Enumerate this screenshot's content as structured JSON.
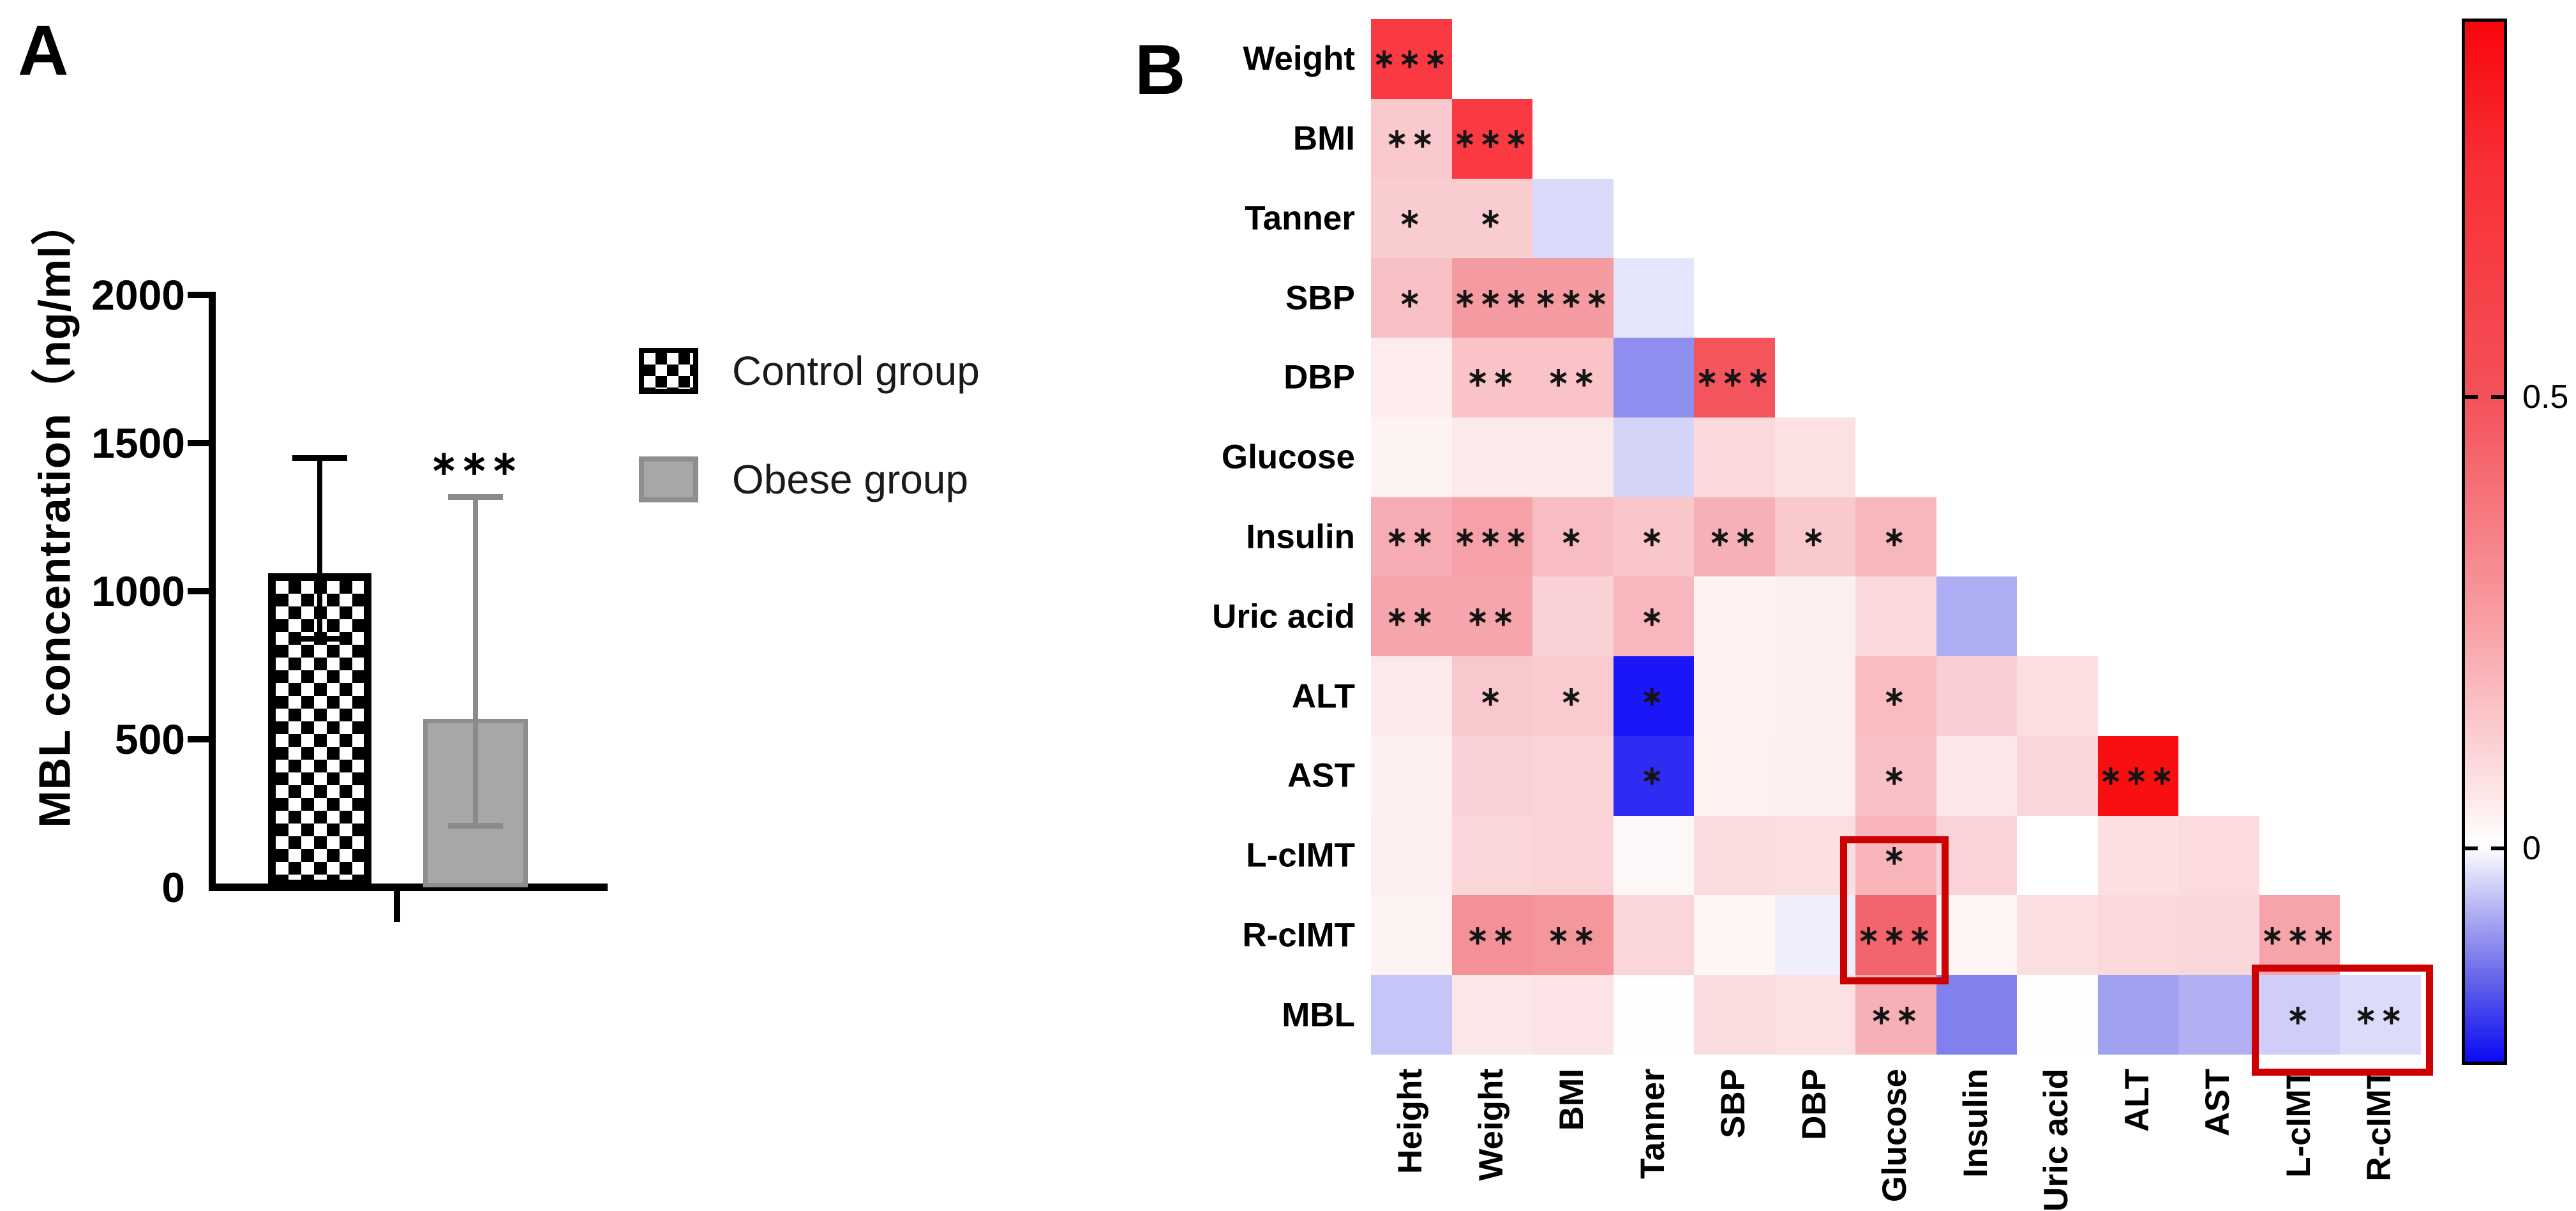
{
  "panel_a": {
    "label": "A",
    "y_axis": {
      "title": "MBL concentration（ng/ml）",
      "ticks": [
        {
          "label": "2000",
          "value": 2000
        },
        {
          "label": "1500",
          "value": 1500
        },
        {
          "label": "1000",
          "value": 1000
        },
        {
          "label": "500",
          "value": 500
        },
        {
          "label": "0",
          "value": 0
        }
      ]
    },
    "bars": [
      {
        "name": "Control group",
        "value": 1060,
        "err_low": 840,
        "err_high": 1450,
        "sig": "",
        "style": "checker"
      },
      {
        "name": "Obese group",
        "value": 570,
        "err_low": 210,
        "err_high": 1320,
        "sig": "***",
        "style": "gray"
      }
    ],
    "legend": [
      {
        "label": "Control group",
        "swatch": "checker-swatch"
      },
      {
        "label": "Obese group",
        "swatch": "gray-swatch"
      }
    ]
  },
  "panel_b": {
    "label": "B",
    "heatmap": {
      "col_labels": [
        "Height",
        "Weight",
        "BMI",
        "Tanner",
        "SBP",
        "DBP",
        "Glucose",
        "Insulin",
        "Uric acid",
        "ALT",
        "AST",
        "L-cIMT",
        "R-cIMT"
      ],
      "row_labels": [
        "Weight",
        "BMI",
        "Tanner",
        "SBP",
        "DBP",
        "Glucose",
        "Insulin",
        "Uric acid",
        "ALT",
        "AST",
        "L-cIMT",
        "R-cIMT",
        "MBL"
      ],
      "rows": [
        {
          "label": "Weight",
          "cells": [
            {
              "col": "Height",
              "r": 0.8,
              "sig": "***",
              "color": "#fa3a42"
            }
          ]
        },
        {
          "label": "BMI",
          "cells": [
            {
              "col": "Height",
              "r": 0.24,
              "sig": "**",
              "color": "#f9c9cd"
            },
            {
              "col": "Weight",
              "r": 0.8,
              "sig": "***",
              "color": "#fa3a42"
            }
          ]
        },
        {
          "label": "Tanner",
          "cells": [
            {
              "col": "Height",
              "r": 0.22,
              "sig": "*",
              "color": "#f9cdd0"
            },
            {
              "col": "Weight",
              "r": 0.22,
              "sig": "*",
              "color": "#f9cdd0"
            },
            {
              "col": "BMI",
              "r": -0.05,
              "sig": "",
              "color": "#d9d9f9"
            }
          ]
        },
        {
          "label": "SBP",
          "cells": [
            {
              "col": "Height",
              "r": 0.28,
              "sig": "*",
              "color": "#f7c0c5"
            },
            {
              "col": "Weight",
              "r": 0.45,
              "sig": "***",
              "color": "#f49aa1"
            },
            {
              "col": "BMI",
              "r": 0.45,
              "sig": "***",
              "color": "#f49aa1"
            },
            {
              "col": "Tanner",
              "r": -0.03,
              "sig": "",
              "color": "#e5e5fb"
            }
          ]
        },
        {
          "label": "DBP",
          "cells": [
            {
              "col": "Height",
              "r": 0.08,
              "sig": "",
              "color": "#fdedee"
            },
            {
              "col": "Weight",
              "r": 0.26,
              "sig": "**",
              "color": "#f9c3c7"
            },
            {
              "col": "BMI",
              "r": 0.26,
              "sig": "**",
              "color": "#f9c3c7"
            },
            {
              "col": "Tanner",
              "r": -0.16,
              "sig": "",
              "color": "#8e8eef"
            },
            {
              "col": "SBP",
              "r": 0.66,
              "sig": "***",
              "color": "#f4545c"
            }
          ]
        },
        {
          "label": "Glucose",
          "cells": [
            {
              "col": "Height",
              "r": 0.05,
              "sig": "",
              "color": "#fef3f3"
            },
            {
              "col": "Weight",
              "r": 0.1,
              "sig": "",
              "color": "#fce9ea"
            },
            {
              "col": "BMI",
              "r": 0.1,
              "sig": "",
              "color": "#fce9ea"
            },
            {
              "col": "Tanner",
              "r": -0.06,
              "sig": "",
              "color": "#d4d4f8"
            },
            {
              "col": "SBP",
              "r": 0.17,
              "sig": "",
              "color": "#fbd9dc"
            },
            {
              "col": "DBP",
              "r": 0.14,
              "sig": "",
              "color": "#fce1e3"
            }
          ]
        },
        {
          "label": "Insulin",
          "cells": [
            {
              "col": "Height",
              "r": 0.38,
              "sig": "**",
              "color": "#f6acb2"
            },
            {
              "col": "Weight",
              "r": 0.42,
              "sig": "***",
              "color": "#f5a1a7"
            },
            {
              "col": "BMI",
              "r": 0.3,
              "sig": "*",
              "color": "#f8bdc2"
            },
            {
              "col": "Tanner",
              "r": 0.25,
              "sig": "*",
              "color": "#f9c6ca"
            },
            {
              "col": "SBP",
              "r": 0.36,
              "sig": "**",
              "color": "#f5b1b7"
            },
            {
              "col": "DBP",
              "r": 0.24,
              "sig": "*",
              "color": "#f9c9cd"
            },
            {
              "col": "Glucose",
              "r": 0.32,
              "sig": "*",
              "color": "#f7b8bd"
            }
          ]
        },
        {
          "label": "Uric acid",
          "cells": [
            {
              "col": "Height",
              "r": 0.4,
              "sig": "**",
              "color": "#f5a5ab"
            },
            {
              "col": "Weight",
              "r": 0.4,
              "sig": "**",
              "color": "#f5a5ab"
            },
            {
              "col": "BMI",
              "r": 0.2,
              "sig": "",
              "color": "#fad2d6"
            },
            {
              "col": "Tanner",
              "r": 0.33,
              "sig": "*",
              "color": "#f7b7bc"
            },
            {
              "col": "SBP",
              "r": 0.05,
              "sig": "",
              "color": "#fef2f2"
            },
            {
              "col": "DBP",
              "r": 0.07,
              "sig": "",
              "color": "#fdf0f0"
            },
            {
              "col": "Glucose",
              "r": 0.17,
              "sig": "",
              "color": "#fadadd"
            },
            {
              "col": "Insulin",
              "r": -0.11,
              "sig": "",
              "color": "#aeaef4"
            }
          ]
        },
        {
          "label": "ALT",
          "cells": [
            {
              "col": "Height",
              "r": 0.1,
              "sig": "",
              "color": "#fceaeb"
            },
            {
              "col": "Weight",
              "r": 0.25,
              "sig": "*",
              "color": "#f9c8cc"
            },
            {
              "col": "BMI",
              "r": 0.23,
              "sig": "*",
              "color": "#f9cbcf"
            },
            {
              "col": "Tanner",
              "r": -0.24,
              "sig": "*",
              "color": "#1a16f8"
            },
            {
              "col": "SBP",
              "r": 0.05,
              "sig": "",
              "color": "#fef2f2"
            },
            {
              "col": "DBP",
              "r": 0.07,
              "sig": "",
              "color": "#fdeff0"
            },
            {
              "col": "Glucose",
              "r": 0.3,
              "sig": "*",
              "color": "#f8bcc1"
            },
            {
              "col": "Insulin",
              "r": 0.21,
              "sig": "",
              "color": "#facfd3"
            },
            {
              "col": "Uric acid",
              "r": 0.15,
              "sig": "",
              "color": "#fbdee0"
            }
          ]
        },
        {
          "label": "AST",
          "cells": [
            {
              "col": "Height",
              "r": 0.06,
              "sig": "",
              "color": "#fef0f0"
            },
            {
              "col": "Weight",
              "r": 0.2,
              "sig": "",
              "color": "#fad2d5"
            },
            {
              "col": "BMI",
              "r": 0.19,
              "sig": "",
              "color": "#fad4d7"
            },
            {
              "col": "Tanner",
              "r": -0.22,
              "sig": "*",
              "color": "#2f2bf3"
            },
            {
              "col": "SBP",
              "r": 0.06,
              "sig": "",
              "color": "#fef1f1"
            },
            {
              "col": "DBP",
              "r": 0.07,
              "sig": "",
              "color": "#fdeff0"
            },
            {
              "col": "Glucose",
              "r": 0.28,
              "sig": "*",
              "color": "#f8c1c6"
            },
            {
              "col": "Insulin",
              "r": 0.1,
              "sig": "",
              "color": "#fce8e9"
            },
            {
              "col": "Uric acid",
              "r": 0.18,
              "sig": "",
              "color": "#fad6d9"
            },
            {
              "col": "ALT",
              "r": 0.9,
              "sig": "***",
              "color": "#f7100f"
            }
          ]
        },
        {
          "label": "L-cIMT",
          "cells": [
            {
              "col": "Height",
              "r": 0.07,
              "sig": "",
              "color": "#fdeff0"
            },
            {
              "col": "Weight",
              "r": 0.18,
              "sig": "",
              "color": "#fad6d9"
            },
            {
              "col": "BMI",
              "r": 0.19,
              "sig": "",
              "color": "#fad3d6"
            },
            {
              "col": "Tanner",
              "r": 0.03,
              "sig": "",
              "color": "#fef7f7"
            },
            {
              "col": "SBP",
              "r": 0.16,
              "sig": "",
              "color": "#fbdcdf"
            },
            {
              "col": "DBP",
              "r": 0.15,
              "sig": "",
              "color": "#fbdee0"
            },
            {
              "col": "Glucose",
              "r": 0.34,
              "sig": "*",
              "color": "#f7b5ba"
            },
            {
              "col": "Insulin",
              "r": 0.19,
              "sig": "",
              "color": "#fad3d6"
            },
            {
              "col": "Uric acid",
              "r": 0.0,
              "sig": "",
              "color": "#ffffff"
            },
            {
              "col": "ALT",
              "r": 0.15,
              "sig": "",
              "color": "#fbdfe1"
            },
            {
              "col": "AST",
              "r": 0.16,
              "sig": "",
              "color": "#fbdbde"
            }
          ]
        },
        {
          "label": "R-cIMT",
          "cells": [
            {
              "col": "Height",
              "r": 0.05,
              "sig": "",
              "color": "#fef3f3"
            },
            {
              "col": "Weight",
              "r": 0.48,
              "sig": "**",
              "color": "#f49198"
            },
            {
              "col": "BMI",
              "r": 0.46,
              "sig": "**",
              "color": "#f4979d"
            },
            {
              "col": "Tanner",
              "r": 0.18,
              "sig": "",
              "color": "#fad6d9"
            },
            {
              "col": "SBP",
              "r": 0.04,
              "sig": "",
              "color": "#fef5f5"
            },
            {
              "col": "DBP",
              "r": -0.02,
              "sig": "",
              "color": "#efeffc"
            },
            {
              "col": "Glucose",
              "r": 0.6,
              "sig": "***",
              "color": "#f3646c"
            },
            {
              "col": "Insulin",
              "r": 0.04,
              "sig": "",
              "color": "#fef5f5"
            },
            {
              "col": "Uric acid",
              "r": 0.15,
              "sig": "",
              "color": "#fbdee0"
            },
            {
              "col": "ALT",
              "r": 0.17,
              "sig": "",
              "color": "#fad8db"
            },
            {
              "col": "AST",
              "r": 0.18,
              "sig": "",
              "color": "#fad7da"
            },
            {
              "col": "L-cIMT",
              "r": 0.4,
              "sig": "***",
              "color": "#f6a4aa"
            }
          ]
        },
        {
          "label": "MBL",
          "cells": [
            {
              "col": "Height",
              "r": -0.08,
              "sig": "",
              "color": "#c5c5f7"
            },
            {
              "col": "Weight",
              "r": 0.11,
              "sig": "",
              "color": "#fce7e8"
            },
            {
              "col": "BMI",
              "r": 0.12,
              "sig": "",
              "color": "#fce4e6"
            },
            {
              "col": "Tanner",
              "r": 0.01,
              "sig": "",
              "color": "#fffdfd"
            },
            {
              "col": "SBP",
              "r": 0.16,
              "sig": "",
              "color": "#fbdcdf"
            },
            {
              "col": "DBP",
              "r": 0.14,
              "sig": "",
              "color": "#fce1e3"
            },
            {
              "col": "Glucose",
              "r": 0.36,
              "sig": "**",
              "color": "#f7b1b6"
            },
            {
              "col": "Insulin",
              "r": -0.18,
              "sig": "",
              "color": "#8181ee"
            },
            {
              "col": "Uric acid",
              "r": 0.01,
              "sig": "",
              "color": "#fefcfc"
            },
            {
              "col": "ALT",
              "r": -0.14,
              "sig": "",
              "color": "#a1a1f1"
            },
            {
              "col": "AST",
              "r": -0.11,
              "sig": "",
              "color": "#b0b0f3"
            },
            {
              "col": "L-cIMT",
              "r": -0.07,
              "sig": "*",
              "color": "#cecef8"
            },
            {
              "col": "R-cIMT",
              "r": -0.05,
              "sig": "**",
              "color": "#dcdcfa"
            }
          ]
        }
      ],
      "highlight_boxes": [
        {
          "name": "glucose-cimt-box",
          "columns": [
            "Glucose"
          ],
          "rows": [
            "L-cIMT",
            "R-cIMT"
          ],
          "color": "#cc0000"
        },
        {
          "name": "mbl-cimt-box",
          "columns": [
            "L-cIMT",
            "R-cIMT"
          ],
          "rows": [
            "MBL"
          ],
          "color": "#cc0000"
        }
      ]
    },
    "colorbar": {
      "max": 0.92,
      "min": -0.24,
      "ticks": [
        {
          "label": "0.5",
          "value": 0.5
        },
        {
          "label": "0",
          "value": 0
        }
      ],
      "top_color": "#f8060c",
      "zero_color": "#ffffff",
      "bottom_color": "#0a0af5"
    }
  },
  "chart_data": [
    {
      "type": "bar",
      "title": "",
      "xlabel": "",
      "ylabel": "MBL concentration（ng/ml）",
      "ylim": [
        0,
        2000
      ],
      "categories": [
        "Control group",
        "Obese group"
      ],
      "values": [
        1060,
        570
      ],
      "error_low": [
        840,
        210
      ],
      "error_high": [
        1450,
        1320
      ],
      "annotations": [
        "",
        "***"
      ],
      "legend_position": "upper right",
      "grid": false
    },
    {
      "type": "heatmap",
      "title": "",
      "x_categories": [
        "Height",
        "Weight",
        "BMI",
        "Tanner",
        "SBP",
        "DBP",
        "Glucose",
        "Insulin",
        "Uric acid",
        "ALT",
        "AST",
        "L-cIMT",
        "R-cIMT"
      ],
      "y_categories": [
        "Weight",
        "BMI",
        "Tanner",
        "SBP",
        "DBP",
        "Glucose",
        "Insulin",
        "Uric acid",
        "ALT",
        "AST",
        "L-cIMT",
        "R-cIMT",
        "MBL"
      ],
      "shape": "lower-triangle",
      "colorbar_range": [
        -0.24,
        0.92
      ],
      "colorbar_ticks": [
        0.5,
        0
      ],
      "legend_position": "right",
      "note": "cell values and significance stars listed in panel_b.heatmap.rows"
    }
  ]
}
